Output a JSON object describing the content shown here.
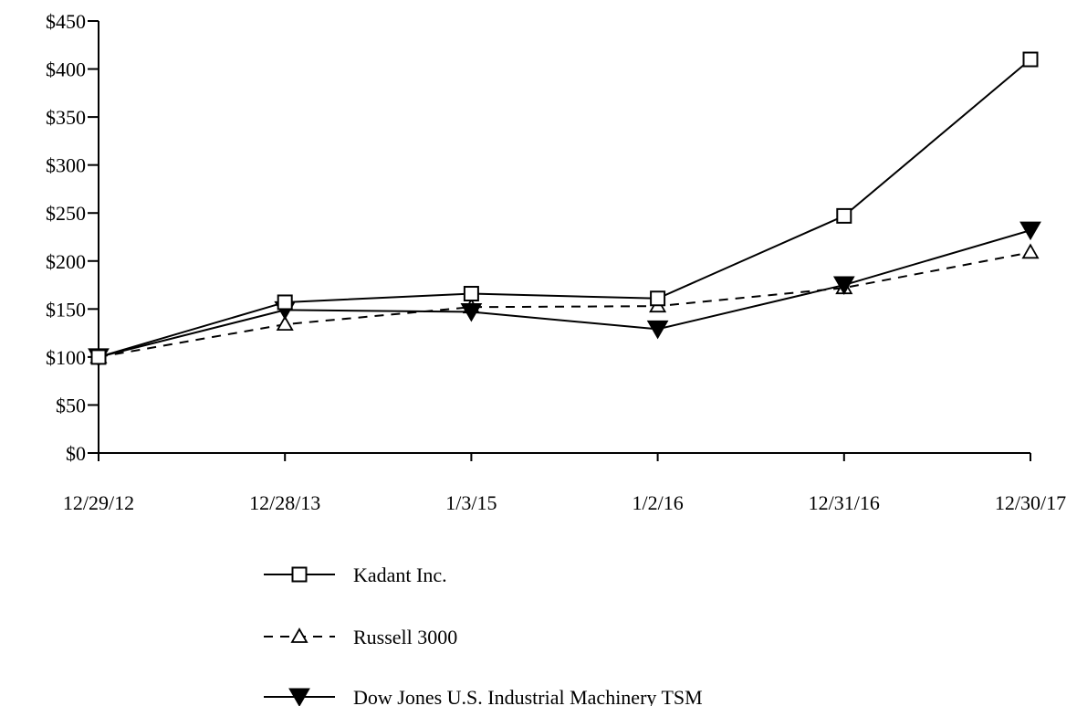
{
  "chart_data": {
    "type": "line",
    "title": "",
    "xlabel": "",
    "ylabel": "",
    "categories": [
      "12/29/12",
      "12/28/13",
      "1/3/15",
      "1/2/16",
      "12/31/16",
      "12/30/17"
    ],
    "y_ticks": [
      "$0",
      "$50",
      "$100",
      "$150",
      "$200",
      "$250",
      "$300",
      "$350",
      "$400",
      "$450"
    ],
    "ylim": [
      0,
      450
    ],
    "grid": false,
    "legend_position": "bottom",
    "series": [
      {
        "name": "Kadant Inc.",
        "values": [
          100,
          157,
          166,
          161,
          247,
          410
        ],
        "marker": "open-square",
        "line_style": "solid",
        "color": "#000000"
      },
      {
        "name": "Russell 3000",
        "values": [
          100,
          134,
          152,
          153,
          172,
          209
        ],
        "marker": "open-triangle",
        "line_style": "dashed",
        "color": "#000000"
      },
      {
        "name": "Dow Jones U.S. Industrial Machinery TSM",
        "values": [
          100,
          149,
          147,
          129,
          175,
          232
        ],
        "marker": "filled-inverted-triangle",
        "line_style": "solid",
        "color": "#000000"
      }
    ]
  }
}
